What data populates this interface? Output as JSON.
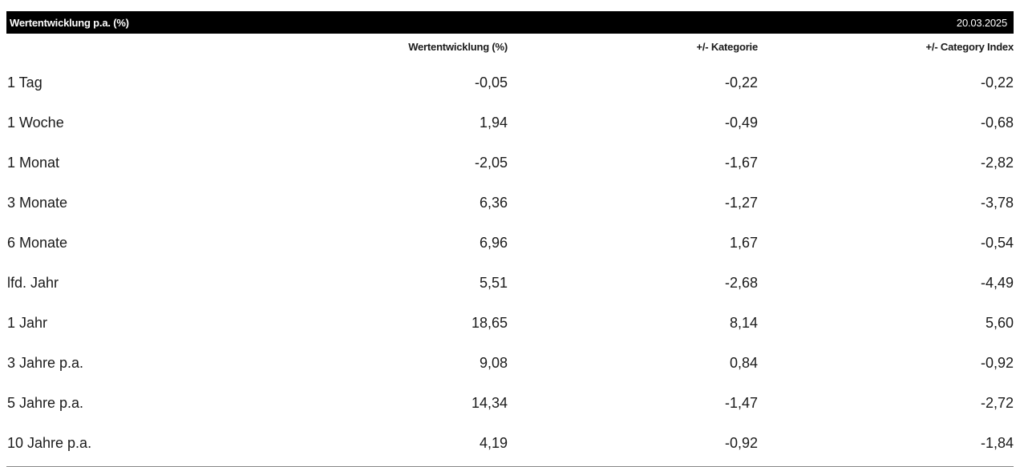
{
  "header": {
    "title": "Wertentwicklung p.a. (%)",
    "date": "20.03.2025"
  },
  "columns": [
    "Wertentwicklung (%)",
    "+/- Kategorie",
    "+/- Category Index"
  ],
  "rows": [
    {
      "label": "1 Tag",
      "values": [
        "-0,05",
        "-0,22",
        "-0,22"
      ]
    },
    {
      "label": "1 Woche",
      "values": [
        "1,94",
        "-0,49",
        "-0,68"
      ]
    },
    {
      "label": "1 Monat",
      "values": [
        "-2,05",
        "-1,67",
        "-2,82"
      ]
    },
    {
      "label": "3 Monate",
      "values": [
        "6,36",
        "-1,27",
        "-3,78"
      ]
    },
    {
      "label": "6 Monate",
      "values": [
        "6,96",
        "1,67",
        "-0,54"
      ]
    },
    {
      "label": "lfd. Jahr",
      "values": [
        "5,51",
        "-2,68",
        "-4,49"
      ]
    },
    {
      "label": "1 Jahr",
      "values": [
        "18,65",
        "8,14",
        "5,60"
      ]
    },
    {
      "label": "3 Jahre p.a.",
      "values": [
        "9,08",
        "0,84",
        "-0,92"
      ]
    },
    {
      "label": "5 Jahre p.a.",
      "values": [
        "14,34",
        "-1,47",
        "-2,72"
      ]
    },
    {
      "label": "10 Jahre p.a.",
      "values": [
        "4,19",
        "-0,92",
        "-1,84"
      ]
    }
  ]
}
